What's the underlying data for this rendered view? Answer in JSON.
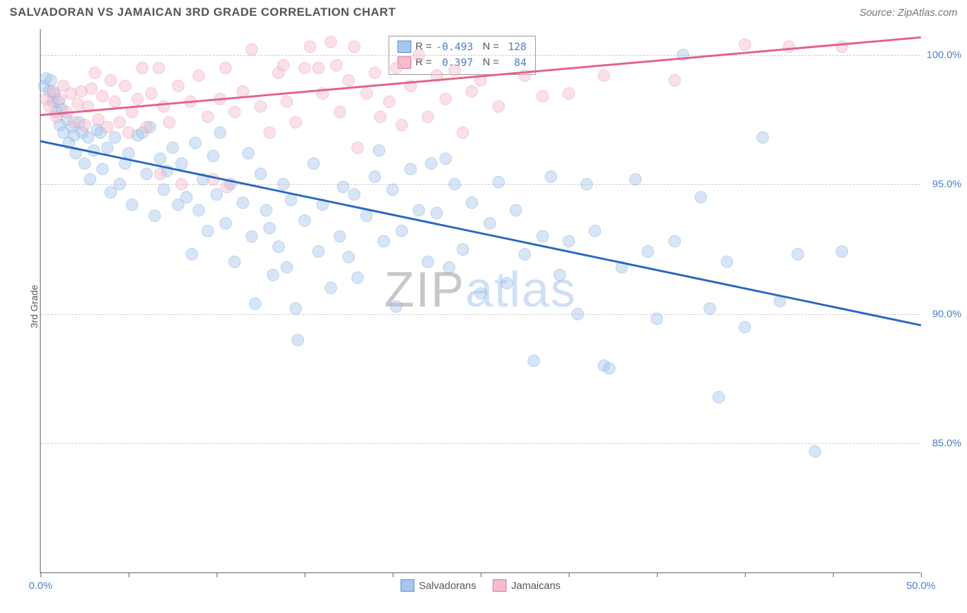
{
  "title": "SALVADORAN VS JAMAICAN 3RD GRADE CORRELATION CHART",
  "source": "Source: ZipAtlas.com",
  "yaxis_label": "3rd Grade",
  "watermark": {
    "part1": "ZIP",
    "part2": "atlas"
  },
  "chart": {
    "type": "scatter",
    "xlim": [
      0,
      50
    ],
    "ylim": [
      80,
      101
    ],
    "xtick_positions": [
      0,
      5,
      10,
      15,
      20,
      25,
      30,
      35,
      40,
      45,
      50
    ],
    "xtick_labels": {
      "0": "0.0%",
      "50": "50.0%"
    },
    "ytick_positions": [
      85,
      90,
      95,
      100
    ],
    "ytick_labels": {
      "85": "85.0%",
      "90": "90.0%",
      "95": "95.0%",
      "100": "100.0%"
    },
    "background_color": "#ffffff",
    "grid_color": "#cccccc",
    "axis_color": "#666666",
    "label_color": "#4a7fc9",
    "point_radius": 9,
    "point_opacity": 0.45
  },
  "series": [
    {
      "name": "Salvadorans",
      "color_fill": "#a7c7ed",
      "color_stroke": "#6b9fd8",
      "swatch_fill": "#a7c7ed",
      "swatch_border": "#5a8fc9",
      "R": "-0.493",
      "N": "128",
      "trend": {
        "x1": 0,
        "y1": 96.7,
        "x2": 50,
        "y2": 89.6,
        "color": "#2968c0"
      },
      "points": [
        [
          0.2,
          98.8
        ],
        [
          0.3,
          99.1
        ],
        [
          0.5,
          98.6
        ],
        [
          0.6,
          99.0
        ],
        [
          0.7,
          98.2
        ],
        [
          0.8,
          98.5
        ],
        [
          0.9,
          97.8
        ],
        [
          1.0,
          98.2
        ],
        [
          1.1,
          97.3
        ],
        [
          1.2,
          97.9
        ],
        [
          1.3,
          97.0
        ],
        [
          1.5,
          97.5
        ],
        [
          1.6,
          96.6
        ],
        [
          1.8,
          97.2
        ],
        [
          1.9,
          96.9
        ],
        [
          2.0,
          96.2
        ],
        [
          2.2,
          97.4
        ],
        [
          2.4,
          97.0
        ],
        [
          2.5,
          95.8
        ],
        [
          2.7,
          96.8
        ],
        [
          2.8,
          95.2
        ],
        [
          3.0,
          96.3
        ],
        [
          3.2,
          97.1
        ],
        [
          3.4,
          97.0
        ],
        [
          3.5,
          95.6
        ],
        [
          3.8,
          96.4
        ],
        [
          4.0,
          94.7
        ],
        [
          4.2,
          96.8
        ],
        [
          4.5,
          95.0
        ],
        [
          4.8,
          95.8
        ],
        [
          5.0,
          96.2
        ],
        [
          5.2,
          94.2
        ],
        [
          5.5,
          96.9
        ],
        [
          5.8,
          97.0
        ],
        [
          6.0,
          95.4
        ],
        [
          6.2,
          97.2
        ],
        [
          6.5,
          93.8
        ],
        [
          6.8,
          96.0
        ],
        [
          7.0,
          94.8
        ],
        [
          7.2,
          95.5
        ],
        [
          7.5,
          96.4
        ],
        [
          7.8,
          94.2
        ],
        [
          8.0,
          95.8
        ],
        [
          8.3,
          94.5
        ],
        [
          8.6,
          92.3
        ],
        [
          8.8,
          96.6
        ],
        [
          9.0,
          94.0
        ],
        [
          9.2,
          95.2
        ],
        [
          9.5,
          93.2
        ],
        [
          9.8,
          96.1
        ],
        [
          10.0,
          94.6
        ],
        [
          10.2,
          97.0
        ],
        [
          10.5,
          93.5
        ],
        [
          10.8,
          95.0
        ],
        [
          11.0,
          92.0
        ],
        [
          11.5,
          94.3
        ],
        [
          11.8,
          96.2
        ],
        [
          12.0,
          93.0
        ],
        [
          12.2,
          90.4
        ],
        [
          12.5,
          95.4
        ],
        [
          12.8,
          94.0
        ],
        [
          13.0,
          93.3
        ],
        [
          13.2,
          91.5
        ],
        [
          13.5,
          92.6
        ],
        [
          13.8,
          95.0
        ],
        [
          14.0,
          91.8
        ],
        [
          14.2,
          94.4
        ],
        [
          14.5,
          90.2
        ],
        [
          14.6,
          89.0
        ],
        [
          15.0,
          93.6
        ],
        [
          15.5,
          95.8
        ],
        [
          15.8,
          92.4
        ],
        [
          16.0,
          94.2
        ],
        [
          16.5,
          91.0
        ],
        [
          17.0,
          93.0
        ],
        [
          17.2,
          94.9
        ],
        [
          17.5,
          92.2
        ],
        [
          17.8,
          94.6
        ],
        [
          18.0,
          91.4
        ],
        [
          18.5,
          93.8
        ],
        [
          19.0,
          95.3
        ],
        [
          19.2,
          96.3
        ],
        [
          19.5,
          92.8
        ],
        [
          20.0,
          94.8
        ],
        [
          20.2,
          90.3
        ],
        [
          20.5,
          93.2
        ],
        [
          21.0,
          95.6
        ],
        [
          21.5,
          94.0
        ],
        [
          22.0,
          92.0
        ],
        [
          22.2,
          95.8
        ],
        [
          22.5,
          93.9
        ],
        [
          23.0,
          96.0
        ],
        [
          23.2,
          91.8
        ],
        [
          23.5,
          95.0
        ],
        [
          24.0,
          92.5
        ],
        [
          24.5,
          94.3
        ],
        [
          25.0,
          90.8
        ],
        [
          25.5,
          93.5
        ],
        [
          26.0,
          95.1
        ],
        [
          26.5,
          91.2
        ],
        [
          27.0,
          94.0
        ],
        [
          27.5,
          92.3
        ],
        [
          28.0,
          88.2
        ],
        [
          28.5,
          93.0
        ],
        [
          29.0,
          95.3
        ],
        [
          29.5,
          91.5
        ],
        [
          30.0,
          92.8
        ],
        [
          30.5,
          90.0
        ],
        [
          31.0,
          95.0
        ],
        [
          31.5,
          93.2
        ],
        [
          32.0,
          88.0
        ],
        [
          32.3,
          87.9
        ],
        [
          33.0,
          91.8
        ],
        [
          33.8,
          95.2
        ],
        [
          34.5,
          92.4
        ],
        [
          35.0,
          89.8
        ],
        [
          36.0,
          92.8
        ],
        [
          36.5,
          100.0
        ],
        [
          37.5,
          94.5
        ],
        [
          38.0,
          90.2
        ],
        [
          38.5,
          86.8
        ],
        [
          39.0,
          92.0
        ],
        [
          40.0,
          89.5
        ],
        [
          41.0,
          96.8
        ],
        [
          42.0,
          90.5
        ],
        [
          43.0,
          92.3
        ],
        [
          44.0,
          84.7
        ],
        [
          45.5,
          92.4
        ]
      ]
    },
    {
      "name": "Jamaicans",
      "color_fill": "#f4bccd",
      "color_stroke": "#e58aa8",
      "swatch_fill": "#f4bccd",
      "swatch_border": "#e07090",
      "R": "0.397",
      "N": "84",
      "trend": {
        "x1": 0,
        "y1": 97.7,
        "x2": 50,
        "y2": 100.7,
        "color": "#e3628c"
      },
      "points": [
        [
          0.3,
          98.3
        ],
        [
          0.5,
          98.0
        ],
        [
          0.7,
          98.6
        ],
        [
          0.9,
          97.6
        ],
        [
          1.1,
          98.3
        ],
        [
          1.3,
          98.8
        ],
        [
          1.5,
          97.8
        ],
        [
          1.7,
          98.5
        ],
        [
          1.9,
          97.4
        ],
        [
          2.1,
          98.1
        ],
        [
          2.3,
          98.6
        ],
        [
          2.5,
          97.3
        ],
        [
          2.7,
          98.0
        ],
        [
          2.9,
          98.7
        ],
        [
          3.1,
          99.3
        ],
        [
          3.3,
          97.5
        ],
        [
          3.5,
          98.4
        ],
        [
          3.8,
          97.2
        ],
        [
          4.0,
          99.0
        ],
        [
          4.2,
          98.2
        ],
        [
          4.5,
          97.4
        ],
        [
          4.8,
          98.8
        ],
        [
          5.0,
          97.0
        ],
        [
          5.2,
          97.8
        ],
        [
          5.5,
          98.3
        ],
        [
          5.8,
          99.5
        ],
        [
          6.0,
          97.2
        ],
        [
          6.3,
          98.5
        ],
        [
          6.7,
          99.5
        ],
        [
          6.8,
          95.4
        ],
        [
          7.0,
          98.0
        ],
        [
          7.3,
          97.4
        ],
        [
          7.8,
          98.8
        ],
        [
          8.0,
          95.0
        ],
        [
          8.5,
          98.2
        ],
        [
          9.0,
          99.2
        ],
        [
          9.5,
          97.6
        ],
        [
          9.8,
          95.2
        ],
        [
          10.2,
          98.3
        ],
        [
          10.5,
          99.5
        ],
        [
          10.6,
          94.9
        ],
        [
          11.0,
          97.8
        ],
        [
          11.5,
          98.6
        ],
        [
          12.0,
          100.2
        ],
        [
          12.5,
          98.0
        ],
        [
          13.0,
          97.0
        ],
        [
          13.5,
          99.3
        ],
        [
          13.8,
          99.6
        ],
        [
          14.0,
          98.2
        ],
        [
          14.5,
          97.4
        ],
        [
          15.0,
          99.5
        ],
        [
          15.3,
          100.3
        ],
        [
          15.8,
          99.5
        ],
        [
          16.0,
          98.5
        ],
        [
          16.5,
          100.5
        ],
        [
          16.8,
          99.6
        ],
        [
          17.0,
          97.8
        ],
        [
          17.5,
          99.0
        ],
        [
          17.8,
          100.3
        ],
        [
          18.0,
          96.4
        ],
        [
          18.5,
          98.5
        ],
        [
          19.0,
          99.3
        ],
        [
          19.3,
          97.6
        ],
        [
          19.8,
          98.2
        ],
        [
          20.2,
          99.5
        ],
        [
          20.5,
          97.3
        ],
        [
          21.0,
          98.8
        ],
        [
          21.5,
          100.0
        ],
        [
          22.0,
          97.6
        ],
        [
          22.5,
          99.2
        ],
        [
          23.0,
          98.3
        ],
        [
          23.5,
          99.4
        ],
        [
          24.0,
          97.0
        ],
        [
          24.5,
          98.6
        ],
        [
          25.0,
          99.0
        ],
        [
          26.0,
          98.0
        ],
        [
          27.5,
          99.2
        ],
        [
          28.5,
          98.4
        ],
        [
          30.0,
          98.5
        ],
        [
          32.0,
          99.2
        ],
        [
          36.0,
          99.0
        ],
        [
          40.0,
          100.4
        ],
        [
          42.5,
          100.3
        ],
        [
          45.5,
          100.3
        ]
      ]
    }
  ],
  "legend_labels": {
    "R": "R =",
    "N": "N ="
  },
  "bottom_legend": [
    "Salvadorans",
    "Jamaicans"
  ]
}
